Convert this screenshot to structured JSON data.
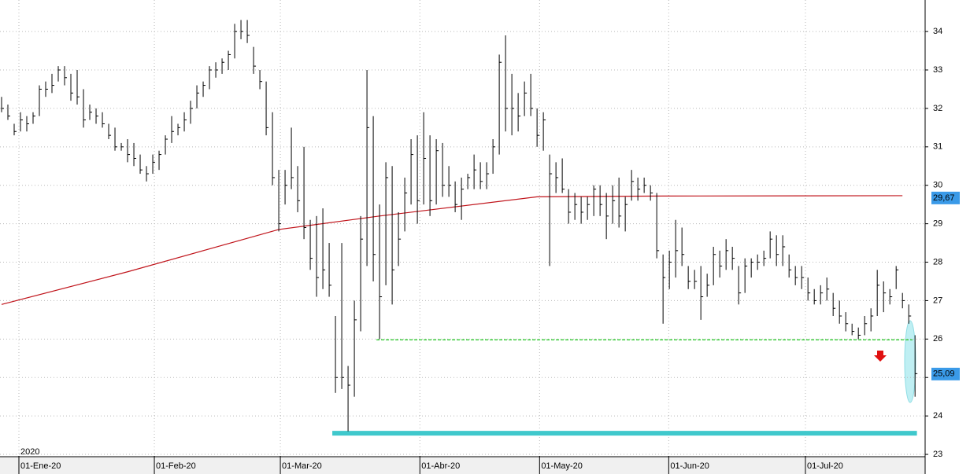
{
  "chart_data": {
    "type": "ohlc",
    "color": "#000000",
    "high": [
      32.3,
      32.1,
      31.6,
      31.9,
      31.8,
      31.9,
      32.6,
      32.7,
      32.9,
      33.1,
      33.1,
      32.9,
      33.0,
      32.5,
      32.1,
      32.0,
      31.9,
      31.6,
      31.5,
      31.1,
      31.2,
      31.1,
      30.8,
      30.5,
      30.8,
      30.9,
      31.3,
      31.8,
      31.6,
      31.9,
      32.2,
      32.6,
      32.7,
      33.1,
      33.2,
      33.3,
      33.5,
      34.2,
      34.3,
      34.3,
      33.6,
      33.0,
      32.7,
      31.9,
      30.4,
      30.4,
      31.5,
      30.5,
      31.0,
      29.1,
      29.2,
      29.4,
      28.5,
      26.6,
      28.5,
      25.3,
      27.0,
      29.2,
      33.0,
      31.8,
      29.5,
      30.6,
      30.5,
      29.3,
      30.2,
      31.2,
      31.3,
      31.9,
      31.3,
      31.2,
      31.1,
      30.5,
      30.1,
      30.2,
      30.3,
      30.8,
      30.6,
      30.6,
      31.2,
      33.4,
      33.9,
      32.9,
      32.4,
      32.7,
      32.9,
      32.0,
      31.9,
      30.8,
      30.6,
      30.7,
      29.9,
      29.8,
      29.7,
      29.7,
      30.0,
      30.0,
      29.8,
      30.0,
      30.2,
      29.7,
      30.4,
      30.2,
      30.2,
      30.0,
      29.8,
      28.2,
      28.3,
      29.1,
      28.9,
      27.9,
      27.8,
      27.9,
      27.7,
      28.4,
      28.3,
      28.6,
      28.4,
      27.9,
      28.1,
      28.1,
      28.2,
      28.3,
      28.8,
      28.7,
      28.7,
      28.2,
      27.9,
      27.9,
      27.6,
      27.3,
      27.4,
      27.6,
      27.2,
      27.0,
      26.7,
      26.4,
      26.3,
      26.6,
      26.8,
      27.8,
      27.5,
      27.3,
      27.9,
      27.2,
      26.9,
      26.1
    ],
    "low": [
      31.9,
      31.7,
      31.3,
      31.4,
      31.4,
      31.6,
      31.8,
      32.3,
      32.4,
      32.7,
      32.6,
      32.2,
      32.1,
      31.5,
      31.7,
      31.6,
      31.5,
      31.2,
      30.9,
      30.9,
      30.6,
      30.5,
      30.3,
      30.1,
      30.3,
      30.4,
      30.8,
      31.1,
      31.3,
      31.4,
      31.6,
      32.0,
      32.3,
      32.5,
      32.8,
      32.9,
      33.0,
      33.3,
      33.8,
      33.7,
      32.9,
      32.5,
      31.3,
      30.0,
      28.8,
      29.5,
      29.9,
      29.3,
      28.6,
      27.8,
      27.1,
      27.3,
      27.1,
      24.6,
      24.7,
      23.6,
      24.5,
      26.2,
      27.9,
      27.5,
      26.0,
      27.4,
      26.9,
      27.9,
      28.8,
      29.5,
      29.0,
      29.5,
      29.2,
      29.5,
      29.7,
      29.7,
      29.3,
      29.1,
      29.9,
      29.9,
      29.9,
      29.9,
      30.3,
      30.8,
      31.4,
      31.3,
      31.4,
      31.8,
      31.8,
      31.0,
      30.9,
      27.9,
      29.8,
      29.8,
      29.0,
      29.1,
      29.0,
      29.1,
      29.2,
      29.2,
      28.6,
      29.0,
      28.9,
      28.8,
      29.6,
      29.6,
      29.8,
      29.6,
      28.1,
      26.4,
      27.3,
      27.6,
      27.9,
      27.3,
      27.3,
      26.5,
      27.1,
      27.4,
      27.6,
      27.8,
      27.8,
      26.9,
      27.2,
      27.6,
      27.8,
      27.9,
      28.1,
      27.9,
      27.9,
      27.6,
      27.4,
      27.3,
      27.0,
      26.9,
      26.9,
      27.0,
      26.6,
      26.4,
      26.2,
      26.1,
      26.0,
      26.1,
      26.2,
      26.6,
      26.7,
      26.9,
      27.3,
      26.8,
      26.4,
      24.5
    ],
    "close": [
      32.0,
      31.8,
      31.4,
      31.7,
      31.6,
      31.8,
      32.5,
      32.5,
      32.6,
      33.0,
      32.8,
      32.4,
      32.3,
      31.7,
      31.9,
      31.8,
      31.6,
      31.3,
      31.0,
      31.0,
      30.8,
      30.7,
      30.4,
      30.3,
      30.6,
      30.8,
      31.2,
      31.4,
      31.5,
      31.7,
      32.0,
      32.4,
      32.6,
      33.0,
      33.0,
      33.2,
      33.4,
      34.0,
      34.0,
      33.9,
      33.1,
      32.7,
      31.5,
      30.2,
      29.0,
      30.0,
      30.2,
      29.6,
      28.9,
      28.1,
      27.6,
      27.8,
      27.4,
      25.0,
      25.0,
      24.8,
      26.5,
      28.6,
      31.5,
      28.2,
      27.1,
      30.2,
      27.8,
      28.6,
      29.8,
      30.8,
      29.6,
      30.7,
      29.6,
      30.9,
      30.0,
      30.0,
      29.5,
      29.9,
      30.2,
      30.4,
      30.1,
      30.3,
      31.0,
      33.2,
      32.0,
      32.0,
      31.8,
      32.4,
      32.0,
      31.3,
      31.7,
      30.3,
      30.2,
      29.9,
      29.3,
      29.5,
      29.3,
      29.5,
      29.9,
      29.5,
      29.2,
      29.6,
      29.2,
      29.5,
      30.1,
      29.9,
      30.0,
      29.8,
      28.3,
      27.6,
      28.0,
      28.3,
      28.2,
      27.5,
      27.5,
      27.1,
      27.4,
      28.2,
      27.9,
      28.3,
      28.1,
      27.2,
      27.9,
      28.0,
      28.0,
      28.1,
      28.6,
      28.2,
      28.4,
      27.8,
      27.6,
      27.6,
      27.2,
      27.0,
      27.2,
      27.3,
      26.8,
      26.6,
      26.4,
      26.2,
      26.1,
      26.4,
      26.6,
      27.4,
      27.2,
      27.1,
      27.8,
      27.0,
      26.6,
      25.1
    ],
    "ma": {
      "color": "#c0141b",
      "x": [
        0,
        20,
        44,
        60,
        85,
        105,
        143
      ],
      "values": [
        26.9,
        27.75,
        28.85,
        29.2,
        29.7,
        29.72,
        29.73
      ]
    },
    "levels": [
      {
        "value": 25.98,
        "from": 59.5,
        "to": 144.6,
        "color": "#33cc33"
      },
      {
        "value": 23.55,
        "from": 52.5,
        "to": 145.3,
        "color": "#3fc8cc"
      }
    ],
    "price_labels": [
      {
        "value": 29.67,
        "label": "29,67"
      },
      {
        "value": 25.09,
        "label": "25,09"
      }
    ],
    "year_label": "2020",
    "xlim": [
      -0.25,
      146.6
    ],
    "ylim": [
      22.96,
      34.82
    ],
    "xticks": [
      {
        "value": 2.75,
        "label": "01-Ene-20"
      },
      {
        "value": 24.25,
        "label": "01-Feb-20"
      },
      {
        "value": 44.25,
        "label": "01-Mar-20"
      },
      {
        "value": 66.4,
        "label": "01-Abr-20"
      },
      {
        "value": 85.4,
        "label": "01-May-20"
      },
      {
        "value": 105.9,
        "label": "01-Jun-20"
      },
      {
        "value": 127.6,
        "label": "01-Jul-20"
      }
    ],
    "yticks": [
      23,
      24,
      25,
      26,
      27,
      28,
      29,
      30,
      31,
      32,
      33,
      34
    ],
    "grid": true
  }
}
